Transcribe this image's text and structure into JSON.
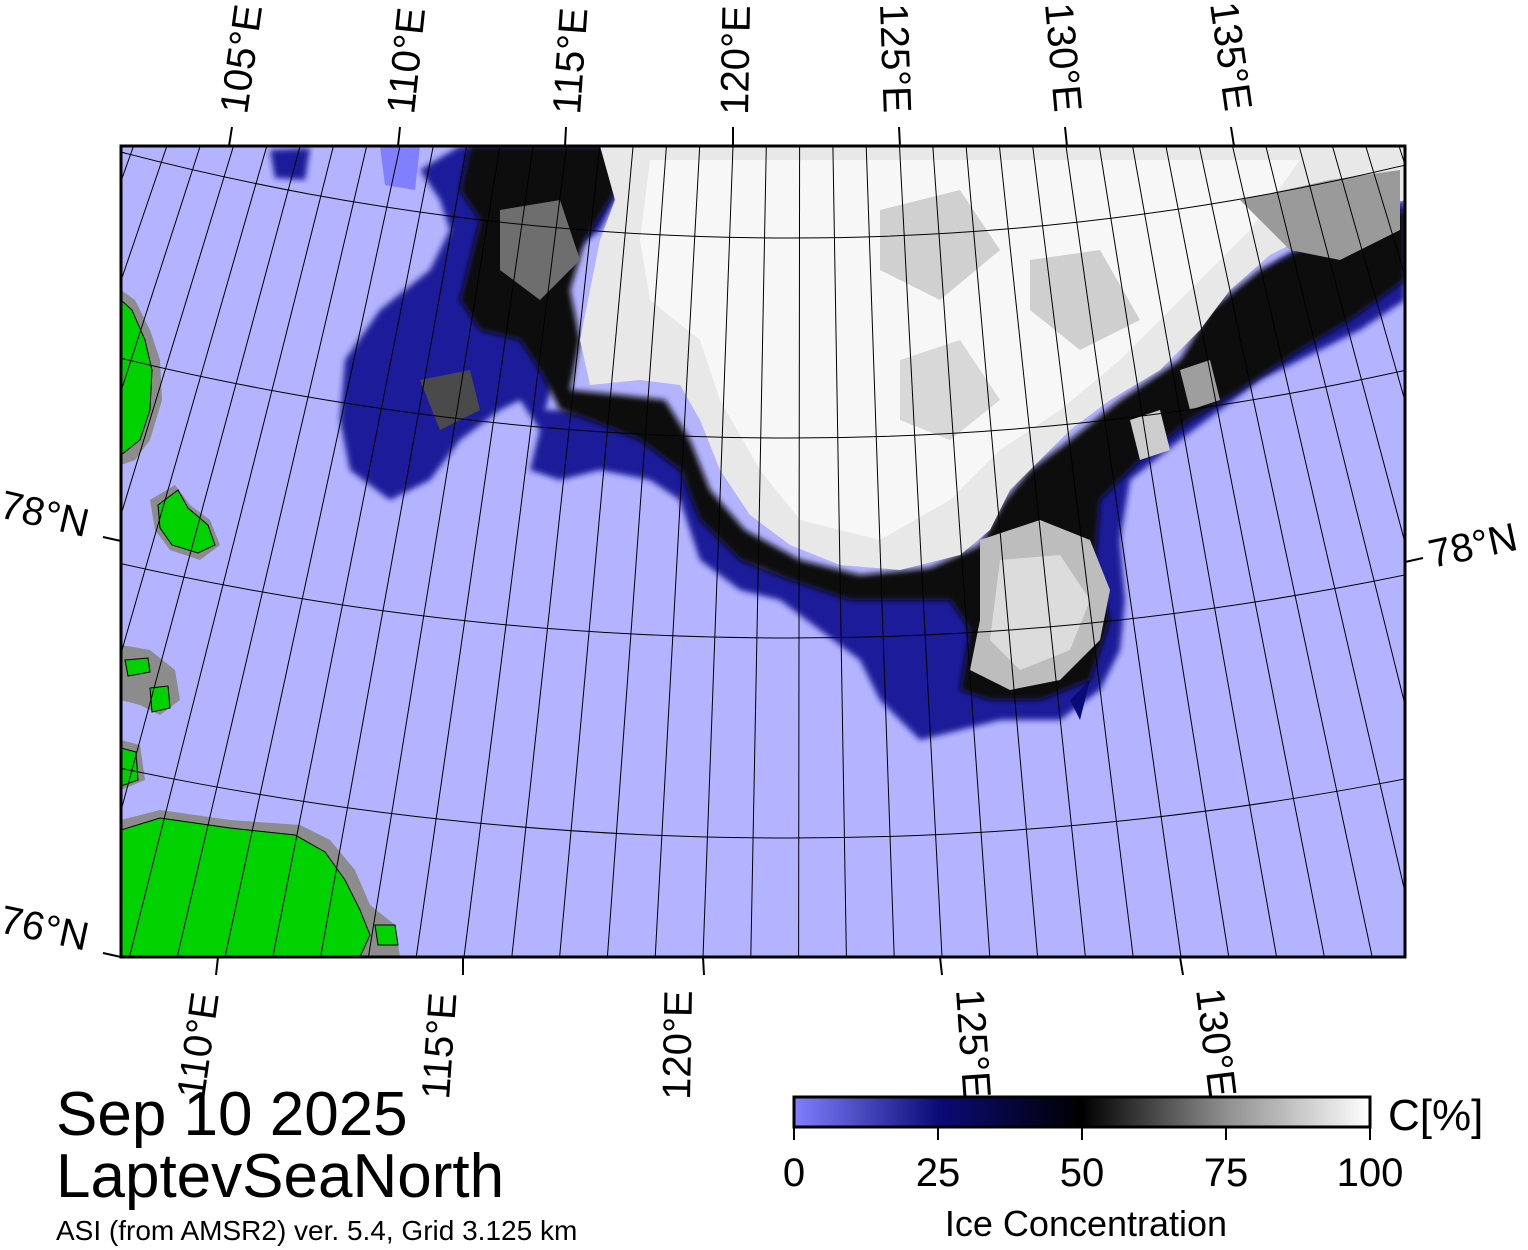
{
  "map": {
    "date": "Sep 10 2025",
    "region": "LaptevSeaNorth",
    "source": "ASI (from AMSR2) ver. 5.4,  Grid 3.125 km",
    "top_lon_labels": [
      "105°E",
      "110°E",
      "115°E",
      "120°E",
      "125°E",
      "130°E",
      "135°E"
    ],
    "bottom_lon_labels": [
      "110°E",
      "115°E",
      "120°E",
      "125°E",
      "130°E"
    ],
    "left_lat_labels": [
      "78°N",
      "76°N"
    ],
    "right_lat_labels": [
      "78°N"
    ],
    "colors": {
      "open_water": "#b3b3ff",
      "land": "#00d200",
      "coast_mask": "#8c8c8c",
      "low_ice": "#0b0b78",
      "high_ice": "#ffffff"
    }
  },
  "colorbar": {
    "title": "Ice Concentration",
    "unit": "C[%]",
    "ticks": [
      "0",
      "25",
      "50",
      "75",
      "100"
    ],
    "range": [
      0,
      100
    ]
  }
}
